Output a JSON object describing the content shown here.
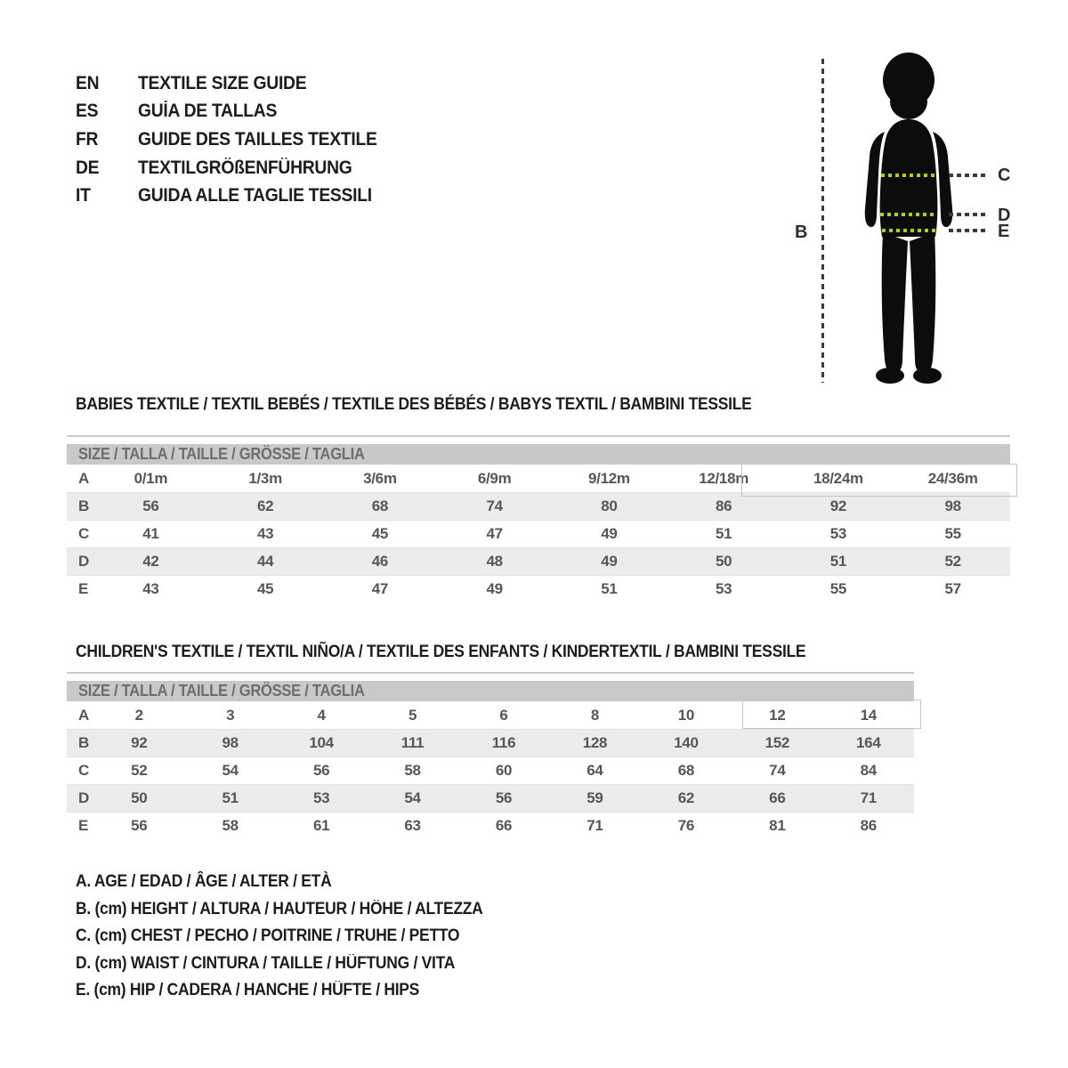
{
  "languages": [
    {
      "code": "EN",
      "label": "TEXTILE SIZE GUIDE"
    },
    {
      "code": "ES",
      "label": "GUÍA DE TALLAS"
    },
    {
      "code": "FR",
      "label": "GUIDE DES TAILLES TEXTILE"
    },
    {
      "code": "DE",
      "label": "TEXTILGRÖßENFÜHRUNG"
    },
    {
      "code": "IT",
      "label": "GUIDA ALLE TAGLIE TESSILI"
    }
  ],
  "figure": {
    "height_label": "B",
    "chest_label": "C",
    "waist_label": "D",
    "hip_label": "E",
    "body_line_color": "#bfcc00",
    "guide_line_color": "#3a3a3a",
    "silhouette_color": "#0c0c0c"
  },
  "babies_table": {
    "title": "BABIES TEXTILE / TEXTIL BEBÉS / TEXTILE DES BÉBÉS / BABYS TEXTIL  / BAMBINI TESSILE",
    "header": "SIZE / TALLA / TAILLE / GRÖSSE / TAGLIA",
    "highlighted_sizes": [
      "18/24m",
      "24/36m"
    ],
    "rows": [
      {
        "label": "A",
        "values": [
          "0/1m",
          "1/3m",
          "3/6m",
          "6/9m",
          "9/12m",
          "12/18m",
          "18/24m",
          "24/36m"
        ]
      },
      {
        "label": "B",
        "values": [
          "56",
          "62",
          "68",
          "74",
          "80",
          "86",
          "92",
          "98"
        ]
      },
      {
        "label": "C",
        "values": [
          "41",
          "43",
          "45",
          "47",
          "49",
          "51",
          "53",
          "55"
        ]
      },
      {
        "label": "D",
        "values": [
          "42",
          "44",
          "46",
          "48",
          "49",
          "50",
          "51",
          "52"
        ]
      },
      {
        "label": "E",
        "values": [
          "43",
          "45",
          "47",
          "49",
          "51",
          "53",
          "55",
          "57"
        ]
      }
    ]
  },
  "children_table": {
    "title": "CHILDREN'S TEXTILE / TEXTIL NIÑO/A / TEXTILE DES ENFANTS / KINDERTEXTIL / BAMBINI TESSILE",
    "header": "SIZE / TALLA / TAILLE / GRÖSSE / TAGLIA",
    "highlighted_sizes": [
      "12",
      "14"
    ],
    "rows": [
      {
        "label": "A",
        "values": [
          "2",
          "3",
          "4",
          "5",
          "6",
          "8",
          "10",
          "12",
          "14"
        ]
      },
      {
        "label": "B",
        "values": [
          "92",
          "98",
          "104",
          "111",
          "116",
          "128",
          "140",
          "152",
          "164"
        ]
      },
      {
        "label": "C",
        "values": [
          "52",
          "54",
          "56",
          "58",
          "60",
          "64",
          "68",
          "74",
          "84"
        ]
      },
      {
        "label": "D",
        "values": [
          "50",
          "51",
          "53",
          "54",
          "56",
          "59",
          "62",
          "66",
          "71"
        ]
      },
      {
        "label": "E",
        "values": [
          "56",
          "58",
          "61",
          "63",
          "66",
          "71",
          "76",
          "81",
          "86"
        ]
      }
    ]
  },
  "legend": [
    "A. AGE / EDAD / ÂGE / ALTER / ETÀ",
    "B. (cm) HEIGHT / ALTURA / HAUTEUR / HÖHE / ALTEZZA",
    "C. (cm) CHEST / PECHO / POITRINE / TRUHE / PETTO",
    "D. (cm) WAIST / CINTURA / TAILLE / HÜFTUNG / VITA",
    "E. (cm) HIP / CADERA / HANCHE / HÜFTE / HIPS"
  ],
  "colors": {
    "table_header_bg": "#c9c9c9",
    "table_zebra_bg": "#ececec",
    "table_text": "#575757",
    "title_text": "#1d1d1d",
    "highlight_border": "#c4c4c4"
  }
}
